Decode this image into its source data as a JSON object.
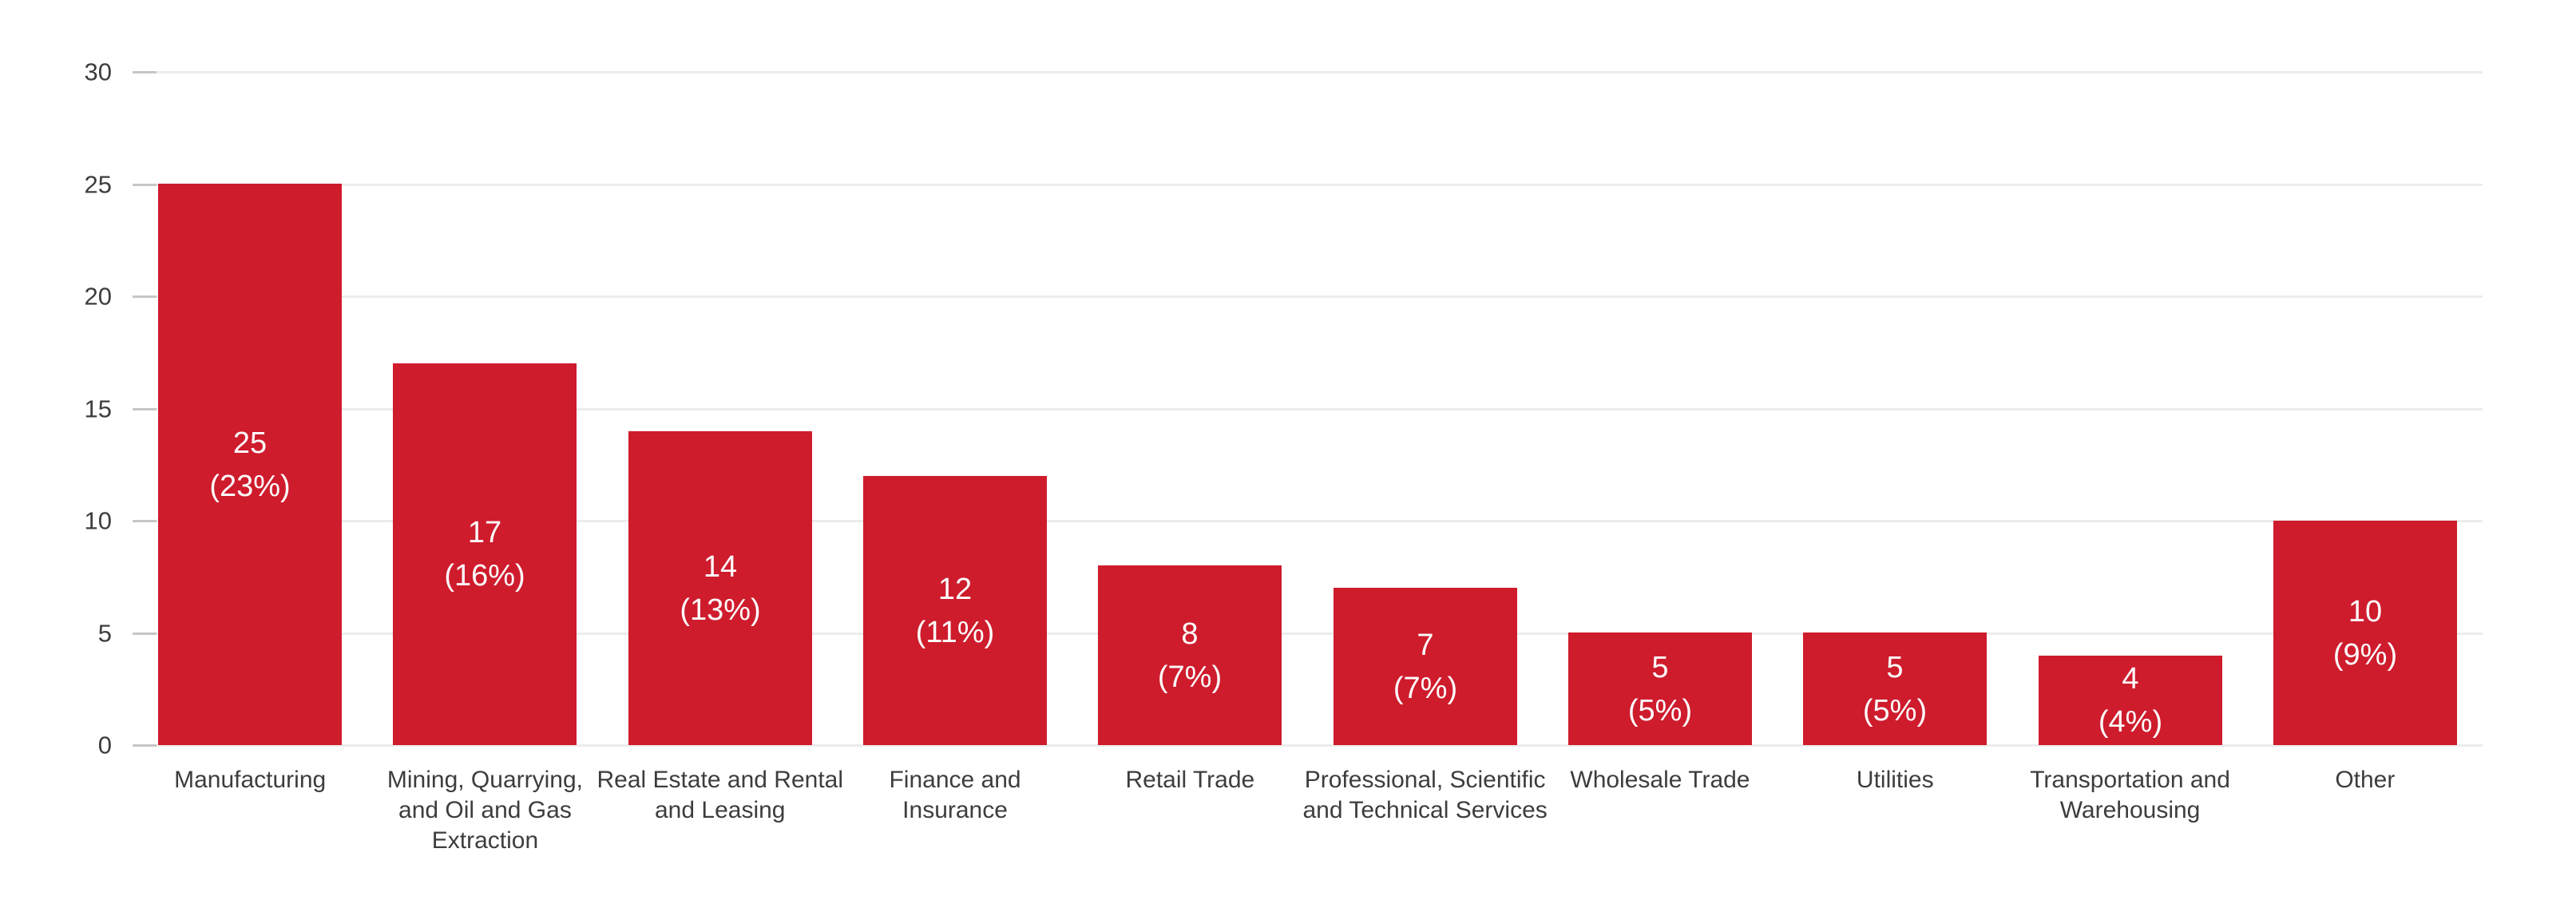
{
  "chart_data": {
    "type": "bar",
    "title": "",
    "xlabel": "",
    "ylabel": "",
    "categories": [
      "Manufacturing",
      "Mining, Quarrying, and Oil and Gas Extraction",
      "Real Estate and Rental and Leasing",
      "Finance and Insurance",
      "Retail Trade",
      "Professional, Scientific and Technical Services",
      "Wholesale Trade",
      "Utilities",
      "Transportation and Warehousing",
      "Other"
    ],
    "category_lines": [
      [
        "Manufacturing"
      ],
      [
        "Mining, Quarrying,",
        "and Oil and Gas",
        "Extraction"
      ],
      [
        "Real Estate and Rental",
        "and Leasing"
      ],
      [
        "Finance and",
        "Insurance"
      ],
      [
        "Retail Trade"
      ],
      [
        "Professional, Scientific",
        "and Technical Services"
      ],
      [
        "Wholesale Trade"
      ],
      [
        "Utilities"
      ],
      [
        "Transportation and",
        "Warehousing"
      ],
      [
        "Other"
      ]
    ],
    "values": [
      25,
      17,
      14,
      12,
      8,
      7,
      5,
      5,
      4,
      10
    ],
    "percentages": [
      23,
      16,
      13,
      11,
      7,
      7,
      5,
      5,
      4,
      9
    ],
    "bar_value_labels": [
      "25",
      "17",
      "14",
      "12",
      "8",
      "7",
      "5",
      "5",
      "4",
      "10"
    ],
    "bar_percent_labels": [
      "(23%)",
      "(16%)",
      "(13%)",
      "(11%)",
      "(7%)",
      "(7%)",
      "(5%)",
      "(5%)",
      "(4%)",
      "(9%)"
    ],
    "yticks": [
      0,
      5,
      10,
      15,
      20,
      25,
      30
    ],
    "ytick_labels": [
      "0",
      "5",
      "10",
      "15",
      "20",
      "25",
      "30"
    ],
    "ylim": [
      0,
      30
    ],
    "grid": true,
    "legend_position": "none",
    "colors": {
      "bar": "#ce1c2d",
      "bar_label_text": "#fdfdfd",
      "axis_text": "#3d3d3d",
      "gridline": "#ececec",
      "tick": "#c6c6c6",
      "background": "#ffffff"
    }
  }
}
